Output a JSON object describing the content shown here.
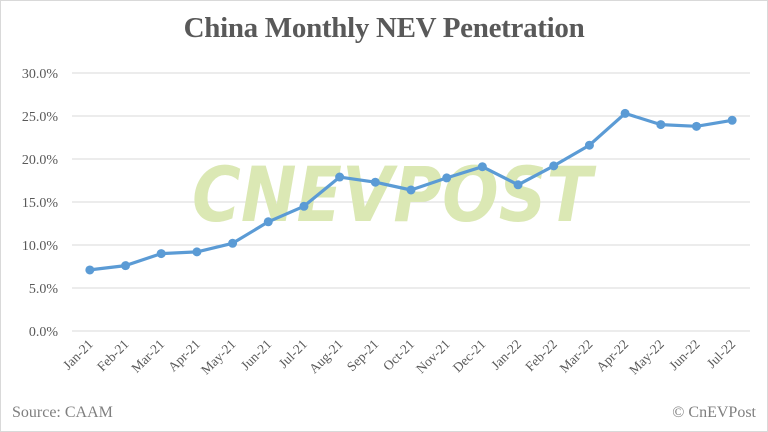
{
  "chart_data": {
    "type": "line",
    "title": "China Monthly NEV Penetration",
    "xlabel": "",
    "ylabel": "",
    "categories": [
      "Jan-21",
      "Feb-21",
      "Mar-21",
      "Apr-21",
      "May-21",
      "Jun-21",
      "Jul-21",
      "Aug-21",
      "Sep-21",
      "Oct-21",
      "Nov-21",
      "Dec-21",
      "Jan-22",
      "Feb-22",
      "Mar-22",
      "Apr-22",
      "May-22",
      "Jun-22",
      "Jul-22"
    ],
    "series": [
      {
        "name": "NEV Penetration",
        "color": "#5b9bd5",
        "values": [
          7.1,
          7.6,
          9.0,
          9.2,
          10.2,
          12.7,
          14.5,
          17.9,
          17.3,
          16.4,
          17.8,
          19.1,
          17.0,
          19.2,
          21.6,
          25.3,
          24.0,
          23.8,
          24.5
        ]
      }
    ],
    "yticks": [
      "0.0%",
      "5.0%",
      "10.0%",
      "15.0%",
      "20.0%",
      "25.0%",
      "30.0%"
    ],
    "ylim": [
      0,
      30
    ],
    "grid": true,
    "legend": "none",
    "watermark": "CNEVPOST"
  },
  "footer": {
    "source": "Source: CAAM",
    "copyright": "© CnEVPost"
  },
  "colors": {
    "line": "#5b9bd5",
    "grid": "#d9d9d9",
    "text": "#595959",
    "watermark": "#dbe8b4"
  }
}
